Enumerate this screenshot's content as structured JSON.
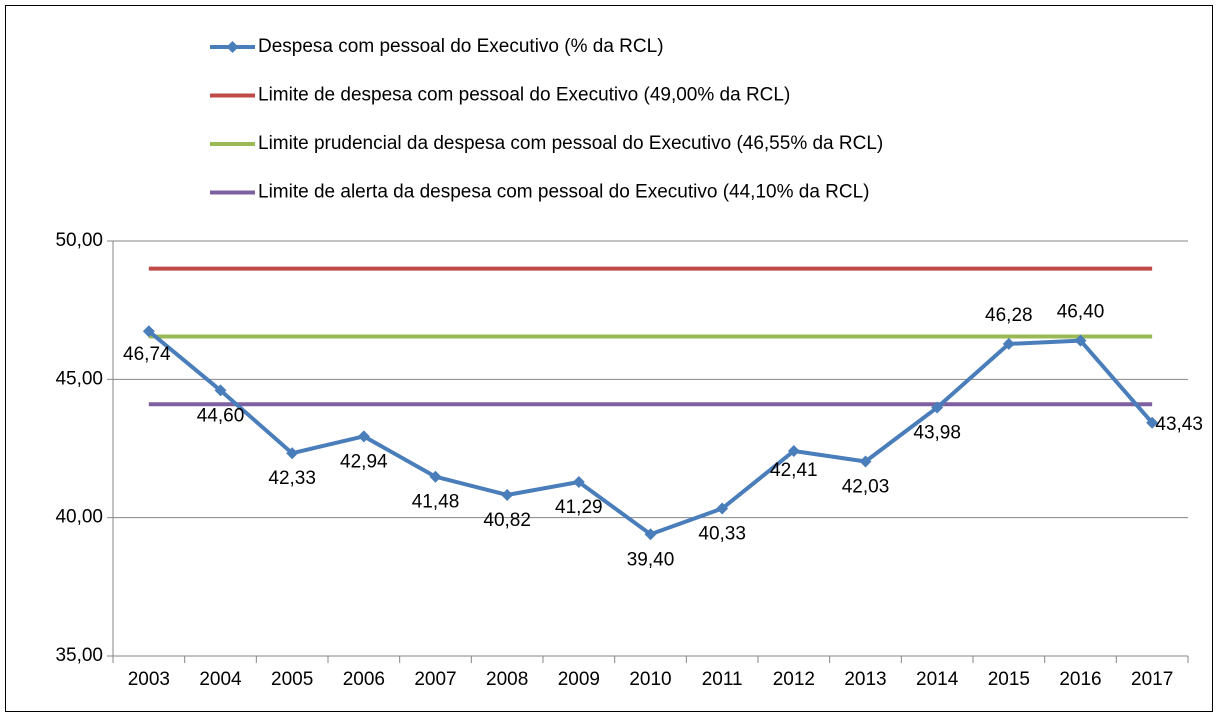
{
  "chart_data": {
    "type": "line",
    "categories": [
      "2003",
      "2004",
      "2005",
      "2006",
      "2007",
      "2008",
      "2009",
      "2010",
      "2011",
      "2012",
      "2013",
      "2014",
      "2015",
      "2016",
      "2017"
    ],
    "series": [
      {
        "name": "Despesa com pessoal do Executivo (% da RCL)",
        "color": "#4a7ebb",
        "marker": "diamond",
        "values": [
          46.74,
          44.6,
          42.33,
          42.94,
          41.48,
          40.82,
          41.29,
          39.4,
          40.33,
          42.41,
          42.03,
          43.98,
          46.28,
          46.4,
          43.43
        ],
        "value_labels": [
          "46,74",
          "44,60",
          "42,33",
          "42,94",
          "41,48",
          "40,82",
          "41,29",
          "39,40",
          "40,33",
          "42,41",
          "42,03",
          "43,98",
          "46,28",
          "46,40",
          "43,43"
        ]
      },
      {
        "name": "Limite de despesa com pessoal do Executivo (49,00% da RCL)",
        "color": "#be4b48",
        "values": [
          49,
          49,
          49,
          49,
          49,
          49,
          49,
          49,
          49,
          49,
          49,
          49,
          49,
          49,
          49
        ]
      },
      {
        "name": "Limite prudencial da despesa com pessoal do Executivo (46,55% da RCL)",
        "color": "#98b954",
        "values": [
          46.55,
          46.55,
          46.55,
          46.55,
          46.55,
          46.55,
          46.55,
          46.55,
          46.55,
          46.55,
          46.55,
          46.55,
          46.55,
          46.55,
          46.55
        ]
      },
      {
        "name": "Limite de alerta da despesa com pessoal do Executivo (44,10% da RCL)",
        "color": "#7d60a0",
        "values": [
          44.1,
          44.1,
          44.1,
          44.1,
          44.1,
          44.1,
          44.1,
          44.1,
          44.1,
          44.1,
          44.1,
          44.1,
          44.1,
          44.1,
          44.1
        ]
      }
    ],
    "ylim": [
      35,
      50
    ],
    "yticks": [
      {
        "value": 35,
        "label": "35,00"
      },
      {
        "value": 40,
        "label": "40,00"
      },
      {
        "value": 45,
        "label": "45,00"
      },
      {
        "value": 50,
        "label": "50,00"
      }
    ],
    "grid": true,
    "legend": "top"
  }
}
